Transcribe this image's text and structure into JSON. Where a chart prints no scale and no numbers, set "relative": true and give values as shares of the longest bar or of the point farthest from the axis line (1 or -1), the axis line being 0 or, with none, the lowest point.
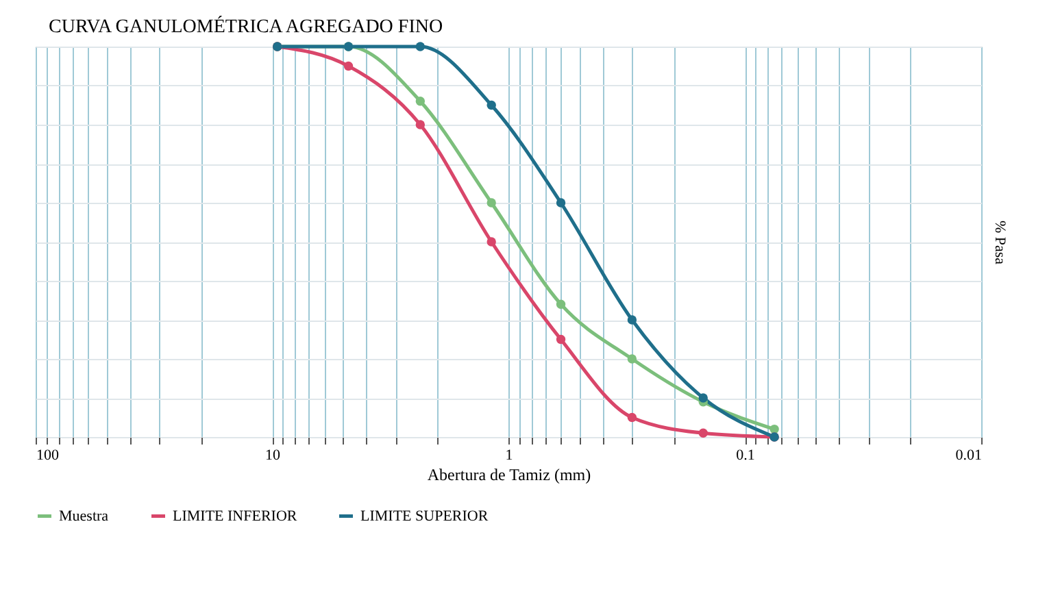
{
  "chart_data": {
    "type": "line",
    "title": "CURVA GANULOMÉTRICA AGREGADO FINO",
    "xlabel": "Abertura de Tamiz (mm)",
    "ylabel": "% Pasa",
    "relative": true,
    "log": "x",
    "grid": true,
    "legend": "bottom",
    "marker": "circle",
    "line_style": "solid",
    "xlim": [
      100,
      0.01
    ],
    "xticks": [
      100,
      {
        "value": 90,
        "label": null
      },
      {
        "value": 80,
        "label": null
      },
      {
        "value": 70,
        "label": null
      },
      {
        "value": 60,
        "label": null
      },
      {
        "value": 50,
        "label": null
      },
      {
        "value": 40,
        "label": null
      },
      {
        "value": 30,
        "label": null
      },
      {
        "value": 20,
        "label": null
      },
      10,
      {
        "value": 9,
        "label": null
      },
      {
        "value": 8,
        "label": null
      },
      {
        "value": 7,
        "label": null
      },
      {
        "value": 6,
        "label": null
      },
      {
        "value": 5,
        "label": null
      },
      {
        "value": 4,
        "label": null
      },
      {
        "value": 3,
        "label": null
      },
      {
        "value": 2,
        "label": null
      },
      1,
      {
        "value": 0.9,
        "label": null
      },
      {
        "value": 0.8,
        "label": null
      },
      {
        "value": 0.7,
        "label": null
      },
      {
        "value": 0.6,
        "label": null
      },
      {
        "value": 0.5,
        "label": null
      },
      {
        "value": 0.4,
        "label": null
      },
      {
        "value": 0.3,
        "label": null
      },
      {
        "value": 0.2,
        "label": null
      },
      0.1,
      {
        "value": 0.09,
        "label": null
      },
      {
        "value": 0.08,
        "label": null
      },
      {
        "value": 0.07,
        "label": null
      },
      {
        "value": 0.06,
        "label": null
      },
      {
        "value": 0.05,
        "label": null
      },
      {
        "value": 0.04,
        "label": null
      },
      {
        "value": 0.03,
        "label": null
      },
      {
        "value": 0.02,
        "label": null
      },
      0.01
    ],
    "x": [
      9.5,
      4.75,
      2.36,
      1.18,
      0.6,
      0.3,
      0.15,
      0.075
    ],
    "series": [
      {
        "name": "Muestra",
        "color": "#7cbf7c",
        "values": [
          1.0,
          1.0,
          0.86,
          0.6,
          0.34,
          0.2,
          0.09,
          0.02
        ]
      },
      {
        "name": "LIMITE INFERIOR",
        "color": "#d9466a",
        "values": [
          1.0,
          0.95,
          0.8,
          0.5,
          0.25,
          0.05,
          0.01,
          0.0
        ]
      },
      {
        "name": "LIMITE SUPERIOR",
        "color": "#1f6f8b",
        "values": [
          1.0,
          1.0,
          1.0,
          0.85,
          0.6,
          0.3,
          0.1,
          0.0
        ]
      }
    ]
  }
}
